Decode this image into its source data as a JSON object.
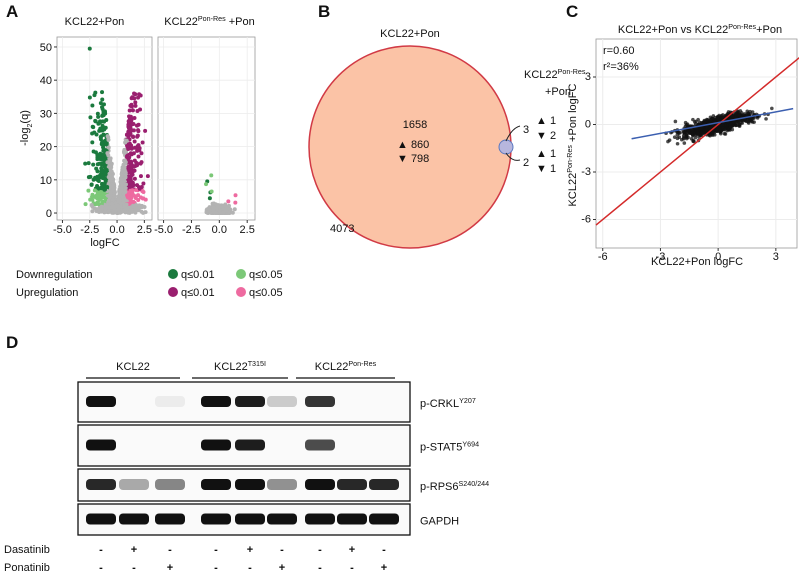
{
  "panel_a": {
    "label": "A",
    "facets": [
      {
        "title": "KCL22+Pon"
      },
      {
        "title": "KCL22",
        "title_sup": "Pon-Res",
        "title_rest": " +Pon"
      }
    ],
    "y_label": "-log",
    "y_label_sub": "2",
    "y_label_rest": "(q)",
    "x_label": "logFC",
    "xlim": [
      -5.5,
      3.2
    ],
    "ylim": [
      -2.1,
      53
    ],
    "xticks": [
      {
        "value": -5,
        "label": "-5.0"
      },
      {
        "value": -2.5,
        "label": "-2.5"
      },
      {
        "value": 0,
        "label": "0.0"
      },
      {
        "value": 2.5,
        "label": "2.5"
      }
    ],
    "yticks": [
      0,
      10,
      20,
      30,
      40,
      50
    ],
    "grid": true,
    "neutral_color": "#b3b3b3",
    "legend": [
      {
        "name": "Downregulation",
        "items": [
          {
            "label": "q≤0.01",
            "color": "#1b7a3e"
          },
          {
            "label": "q≤0.05",
            "color": "#7cc878"
          }
        ]
      },
      {
        "name": "Upregulation",
        "items": [
          {
            "label": "q≤0.01",
            "color": "#9a1f6f"
          },
          {
            "label": "q≤0.05",
            "color": "#ee6aa0"
          }
        ]
      }
    ]
  },
  "panel_b": {
    "label": "B",
    "big_set": "KCL22+Pon",
    "small_set": "KCL22",
    "small_set_sup": "Pon-Res",
    "small_set_rest": "+Pon",
    "shared": {
      "total": "1658",
      "up": "▲ 860",
      "down": "▼ 798"
    },
    "outside": "4073",
    "small_only_a": {
      "total": "3",
      "up": "▲ 1",
      "down": "▼ 2"
    },
    "small_only_b": {
      "total": "2",
      "up": "▲ 1",
      "down": "▼ 1"
    }
  },
  "panel_c": {
    "label": "C",
    "title": "KCL22+Pon vs KCL22",
    "title_sup": "Pon-Res",
    "title_rest": "+Pon",
    "r": "r=0.60",
    "r2": "r²=36%",
    "x_label": "KCL22+Pon logFC",
    "y_label": "KCL22",
    "y_label_sup": "Pon-Res",
    "y_label_rest": " +Pon logFC",
    "xlim": [
      -6.35,
      4.1
    ],
    "ylim": [
      -7.8,
      5.4
    ],
    "xticks": [
      -6,
      -3,
      0,
      3
    ],
    "yticks": [
      -6,
      -3,
      0,
      3
    ]
  },
  "panel_d": {
    "label": "D",
    "groups": [
      {
        "name": "KCL22"
      },
      {
        "name": "KCL22",
        "sup": "T315I"
      },
      {
        "name": "KCL22",
        "sup": "Pon-Res"
      }
    ],
    "blots": [
      {
        "name": "p-CRKL",
        "sup": "Y207"
      },
      {
        "name": "p-STAT5",
        "sup": "Y694"
      },
      {
        "name": "p-RPS6",
        "sup": "S240/244"
      },
      {
        "name": "GAPDH"
      }
    ],
    "treatments": [
      {
        "name": "Dasatinib",
        "signs": [
          "-",
          "+",
          "-",
          "-",
          "+",
          "-",
          "-",
          "+",
          "-"
        ]
      },
      {
        "name": "Ponatinib",
        "signs": [
          "-",
          "-",
          "+",
          "-",
          "-",
          "+",
          "-",
          "-",
          "+"
        ]
      }
    ]
  }
}
